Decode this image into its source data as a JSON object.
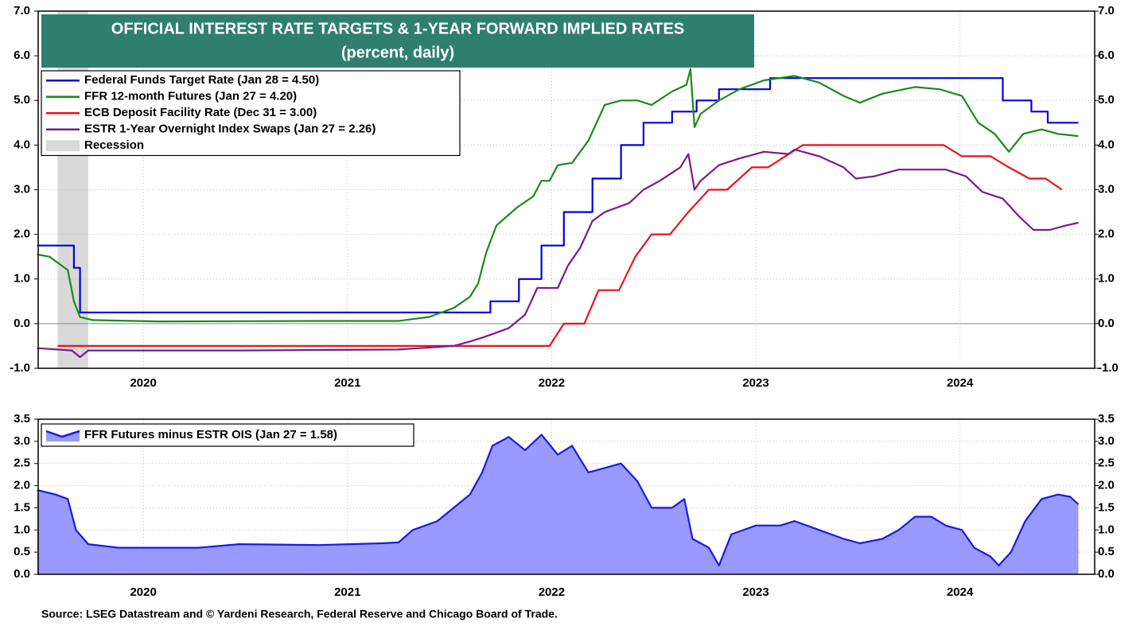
{
  "chart_data": [
    {
      "type": "line",
      "title": "OFFICIAL INTEREST RATE TARGETS & 1-YEAR FORWARD IMPLIED RATES",
      "subtitle": "(percent, daily)",
      "xlim": [
        2019.985,
        2025.16
      ],
      "xticks": [
        {
          "value": 2020.5,
          "label": "2020"
        },
        {
          "value": 2021.5,
          "label": "2021"
        },
        {
          "value": 2022.5,
          "label": "2022"
        },
        {
          "value": 2023.5,
          "label": "2023"
        },
        {
          "value": 2024.5,
          "label": "2024"
        }
      ],
      "ylim": [
        -1,
        7
      ],
      "yticks": [
        {
          "value": -1,
          "label": "-1.0"
        },
        {
          "value": 0,
          "label": "0.0"
        },
        {
          "value": 1,
          "label": "1.0"
        },
        {
          "value": 2,
          "label": "2.0"
        },
        {
          "value": 3,
          "label": "3.0"
        },
        {
          "value": 4,
          "label": "4.0"
        },
        {
          "value": 5,
          "label": "5.0"
        },
        {
          "value": 6,
          "label": "6.0"
        },
        {
          "value": 7,
          "label": "7.0"
        }
      ],
      "grid": true,
      "recession": {
        "name": "Recession",
        "color": "#d9d9d9",
        "x": [
          2020.08,
          2020.23
        ]
      },
      "series": [
        {
          "name": "Federal Funds Target Rate (Jan 28 = 4.50)",
          "color": "#0000dd",
          "x": [
            2019.98,
            2020.16,
            2020.16,
            2020.19,
            2020.19,
            2022.2,
            2022.2,
            2022.34,
            2022.34,
            2022.45,
            2022.45,
            2022.56,
            2022.56,
            2022.7,
            2022.7,
            2022.84,
            2022.84,
            2022.95,
            2022.95,
            2023.09,
            2023.09,
            2023.21,
            2023.21,
            2023.32,
            2023.32,
            2023.57,
            2023.57,
            2024.71,
            2024.71,
            2024.85,
            2024.85,
            2024.93,
            2024.93,
            2025.08
          ],
          "values": [
            1.75,
            1.75,
            1.25,
            1.25,
            0.25,
            0.25,
            0.5,
            0.5,
            1.0,
            1.0,
            1.75,
            1.75,
            2.5,
            2.5,
            3.25,
            3.25,
            4.0,
            4.0,
            4.5,
            4.5,
            4.75,
            4.75,
            5.0,
            5.0,
            5.25,
            5.25,
            5.5,
            5.5,
            5.0,
            5.0,
            4.75,
            4.75,
            4.5,
            4.5
          ]
        },
        {
          "name": "FFR 12-month Futures (Jan 27 = 4.20)",
          "color": "#1a8a1a",
          "x": [
            2019.98,
            2020.04,
            2020.13,
            2020.16,
            2020.19,
            2020.25,
            2020.58,
            2021.36,
            2021.75,
            2021.9,
            2022.02,
            2022.1,
            2022.14,
            2022.18,
            2022.23,
            2022.33,
            2022.41,
            2022.45,
            2022.49,
            2022.53,
            2022.6,
            2022.68,
            2022.72,
            2022.76,
            2022.84,
            2022.92,
            2022.99,
            2023.09,
            2023.16,
            2023.18,
            2023.2,
            2023.23,
            2023.32,
            2023.42,
            2023.54,
            2023.69,
            2023.81,
            2023.93,
            2024.01,
            2024.12,
            2024.28,
            2024.4,
            2024.51,
            2024.59,
            2024.67,
            2024.74,
            2024.81,
            2024.9,
            2024.98,
            2025.08
          ],
          "values": [
            1.55,
            1.5,
            1.2,
            0.5,
            0.15,
            0.08,
            0.05,
            0.06,
            0.06,
            0.15,
            0.35,
            0.6,
            0.9,
            1.6,
            2.2,
            2.6,
            2.85,
            3.2,
            3.2,
            3.55,
            3.6,
            4.1,
            4.5,
            4.9,
            5.0,
            5.0,
            4.9,
            5.2,
            5.35,
            5.7,
            4.4,
            4.7,
            5.0,
            5.25,
            5.45,
            5.55,
            5.4,
            5.1,
            4.95,
            5.15,
            5.3,
            5.25,
            5.1,
            4.5,
            4.25,
            3.85,
            4.25,
            4.35,
            4.25,
            4.2
          ]
        },
        {
          "name": "ECB Deposit Facility Rate (Dec 31 = 3.00)",
          "color": "#e8141a",
          "x": [
            2020.08,
            2022.49,
            2022.56,
            2022.66,
            2022.73,
            2022.83,
            2022.91,
            2022.99,
            2023.08,
            2023.17,
            2023.27,
            2023.36,
            2023.48,
            2023.56,
            2023.73,
            2024.42,
            2024.51,
            2024.65,
            2024.74,
            2024.84,
            2024.92,
            2025.0
          ],
          "values": [
            -0.5,
            -0.5,
            0,
            0,
            0.75,
            0.75,
            1.5,
            2.0,
            2.0,
            2.5,
            3.0,
            3.0,
            3.5,
            3.5,
            4.0,
            4.0,
            3.75,
            3.75,
            3.5,
            3.25,
            3.25,
            3.0
          ]
        },
        {
          "name": "ESTR 1-Year Overnight Index Swaps (Jan 27 = 2.26)",
          "color": "#7b1a8c",
          "x": [
            2019.98,
            2020.15,
            2020.19,
            2020.23,
            2020.97,
            2021.75,
            2022.02,
            2022.1,
            2022.17,
            2022.29,
            2022.37,
            2022.43,
            2022.49,
            2022.53,
            2022.58,
            2022.64,
            2022.7,
            2022.76,
            2022.88,
            2022.95,
            2023.03,
            2023.13,
            2023.17,
            2023.2,
            2023.23,
            2023.32,
            2023.42,
            2023.54,
            2023.66,
            2023.69,
            2023.81,
            2023.93,
            2023.99,
            2024.08,
            2024.2,
            2024.32,
            2024.43,
            2024.53,
            2024.61,
            2024.71,
            2024.79,
            2024.86,
            2024.94,
            2025.02,
            2025.08
          ],
          "values": [
            -0.55,
            -0.6,
            -0.75,
            -0.6,
            -0.6,
            -0.58,
            -0.5,
            -0.4,
            -0.3,
            -0.1,
            0.2,
            0.8,
            0.8,
            0.8,
            1.3,
            1.7,
            2.3,
            2.5,
            2.7,
            3.0,
            3.2,
            3.5,
            3.8,
            3.0,
            3.2,
            3.55,
            3.7,
            3.85,
            3.8,
            3.9,
            3.75,
            3.5,
            3.25,
            3.3,
            3.45,
            3.45,
            3.45,
            3.3,
            2.95,
            2.8,
            2.4,
            2.1,
            2.1,
            2.2,
            2.26
          ]
        }
      ]
    },
    {
      "type": "area",
      "xlim": [
        2019.985,
        2025.16
      ],
      "xticks": [
        {
          "value": 2020.5,
          "label": "2020"
        },
        {
          "value": 2021.5,
          "label": "2021"
        },
        {
          "value": 2022.5,
          "label": "2022"
        },
        {
          "value": 2023.5,
          "label": "2023"
        },
        {
          "value": 2024.5,
          "label": "2024"
        }
      ],
      "ylim": [
        0,
        3.5
      ],
      "yticks": [
        {
          "value": 0,
          "label": "0.0"
        },
        {
          "value": 0.5,
          "label": "0.5"
        },
        {
          "value": 1,
          "label": "1.0"
        },
        {
          "value": 1.5,
          "label": "1.5"
        },
        {
          "value": 2,
          "label": "2.0"
        },
        {
          "value": 2.5,
          "label": "2.5"
        },
        {
          "value": 3,
          "label": "3.0"
        },
        {
          "value": 3.5,
          "label": "3.5"
        }
      ],
      "grid": true,
      "series": [
        {
          "name": "FFR Futures minus ESTR OIS (Jan 27 = 1.58)",
          "color": "#1a1ae6",
          "fill": "#9999ff",
          "x": [
            2019.98,
            2020.07,
            2020.13,
            2020.17,
            2020.23,
            2020.38,
            2020.77,
            2020.97,
            2021.36,
            2021.67,
            2021.75,
            2021.82,
            2021.94,
            2022.02,
            2022.1,
            2022.16,
            2022.21,
            2022.29,
            2022.37,
            2022.45,
            2022.53,
            2022.6,
            2022.68,
            2022.76,
            2022.84,
            2022.92,
            2022.99,
            2023.09,
            2023.15,
            2023.19,
            2023.27,
            2023.32,
            2023.38,
            2023.5,
            2023.62,
            2023.69,
            2023.81,
            2023.93,
            2024.01,
            2024.12,
            2024.2,
            2024.28,
            2024.36,
            2024.43,
            2024.51,
            2024.57,
            2024.65,
            2024.69,
            2024.75,
            2024.82,
            2024.9,
            2024.98,
            2025.04,
            2025.08
          ],
          "values": [
            1.9,
            1.8,
            1.7,
            1.0,
            0.68,
            0.6,
            0.6,
            0.68,
            0.66,
            0.7,
            0.72,
            1.0,
            1.2,
            1.5,
            1.8,
            2.3,
            2.9,
            3.1,
            2.8,
            3.15,
            2.7,
            2.9,
            2.3,
            2.4,
            2.5,
            2.1,
            1.5,
            1.5,
            1.7,
            0.8,
            0.6,
            0.2,
            0.9,
            1.1,
            1.1,
            1.2,
            1.0,
            0.8,
            0.7,
            0.8,
            1.0,
            1.3,
            1.3,
            1.1,
            1.0,
            0.6,
            0.4,
            0.2,
            0.5,
            1.2,
            1.7,
            1.8,
            1.75,
            1.58
          ]
        }
      ]
    }
  ],
  "source": "Source: LSEG Datastream and © Yardeni Research, Federal Reserve and Chicago Board of Trade."
}
